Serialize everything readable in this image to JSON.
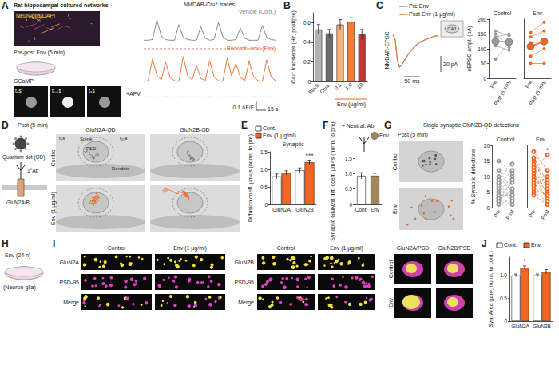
{
  "figure": {
    "panel_labels": [
      "A",
      "B",
      "C",
      "D",
      "E",
      "F",
      "G",
      "H",
      "I",
      "J"
    ],
    "A": {
      "title": "Rat hippocampal cultured networks",
      "stain": "NeuN/glia/DAPI",
      "protocol": "Pre-post Env (5 min)",
      "imaging": "GCaMP",
      "times": [
        "t₀s",
        "t₁.₅s",
        "t₃s"
      ],
      "traces_title": "NMDAR-Ca²⁺ traces"
    },
    "D": {
      "title": "Post (5 min)",
      "columns": [
        "GluN2A-QD",
        "GluN2B-QD"
      ],
      "rows": [
        "Control",
        "Env (1 µg/ml)"
      ],
      "probe": [
        "Quantum dot (QD)",
        "1°Ab",
        "GluN2A/B"
      ],
      "structures": [
        "Spine",
        "PSD",
        "Dendrite"
      ],
      "times": [
        "t₀s",
        "t₂₅s"
      ]
    },
    "G": {
      "title": "Post (5 min)",
      "rows": [
        "Control",
        "Env"
      ]
    },
    "H": {
      "title": "Env (24 h)",
      "subtitle": "(Neuron-glia)"
    },
    "I": {
      "columns": [
        "Control",
        "Env (1 µg/ml)",
        "Control",
        "Env (1 µg/ml)"
      ],
      "rows_left": [
        "GluN2A",
        "PSD-95",
        "Merge"
      ],
      "rows_right": [
        "GluN2B",
        "PSD-95",
        "Merge"
      ],
      "zoom_columns": [
        "GluN2A/PSD",
        "GluN2B/PSD"
      ],
      "zoom_rows": [
        "Control",
        "Env"
      ]
    }
  },
  "chart_data": [
    {
      "type": "line",
      "title": "Vehicle (Cont.)",
      "color": "#7f7f7f",
      "tick_labels": false,
      "xlim": [
        0,
        60
      ],
      "ylim": [
        0,
        0.4
      ],
      "x": [
        0,
        2,
        4,
        6,
        8,
        10,
        12,
        14,
        16,
        18,
        20,
        22,
        24,
        26,
        28,
        30,
        32,
        34,
        36,
        38,
        40,
        42,
        44,
        46,
        48,
        50,
        52,
        54,
        56,
        58,
        60
      ],
      "values": [
        0.02,
        0.02,
        0.03,
        0.32,
        0.08,
        0.03,
        0.02,
        0.02,
        0.25,
        0.06,
        0.03,
        0.02,
        0.02,
        0.22,
        0.05,
        0.02,
        0.03,
        0.28,
        0.07,
        0.02,
        0.02,
        0.03,
        0.2,
        0.05,
        0.02,
        0.02,
        0.02,
        0.24,
        0.06,
        0.03,
        0.02
      ]
    },
    {
      "type": "line",
      "title": "Recomb. env. (Env)",
      "color": "#f26522",
      "tick_labels": false,
      "xlim": [
        0,
        60
      ],
      "ylim": [
        0,
        0.4
      ],
      "x": [
        0,
        2,
        4,
        6,
        8,
        10,
        12,
        14,
        16,
        18,
        20,
        22,
        24,
        26,
        28,
        30,
        32,
        34,
        36,
        38,
        40,
        42,
        44,
        46,
        48,
        50,
        52,
        54,
        56,
        58,
        60
      ],
      "values": [
        0.02,
        0.03,
        0.3,
        0.1,
        0.04,
        0.26,
        0.07,
        0.03,
        0.02,
        0.33,
        0.09,
        0.04,
        0.22,
        0.06,
        0.03,
        0.28,
        0.08,
        0.03,
        0.02,
        0.31,
        0.09,
        0.24,
        0.07,
        0.03,
        0.27,
        0.08,
        0.03,
        0.02,
        0.29,
        0.08,
        0.03
      ]
    },
    {
      "type": "line",
      "title": "+APV",
      "color": "#333333",
      "tick_labels": false,
      "xlim": [
        0,
        60
      ],
      "ylim": [
        0,
        0.4
      ],
      "annotations": [
        "0.1 ΔF/F",
        "15 s"
      ],
      "x": [
        0,
        2,
        4,
        6,
        8,
        10,
        12,
        14,
        16,
        18,
        20,
        22,
        24,
        26,
        28,
        30,
        32,
        34,
        36,
        38,
        40,
        42,
        44,
        46,
        48,
        50,
        52,
        54,
        56,
        58,
        60
      ],
      "values": [
        0.02,
        0.022,
        0.02,
        0.021,
        0.02,
        0.023,
        0.02,
        0.021,
        0.02,
        0.022,
        0.02,
        0.022,
        0.02,
        0.021,
        0.02,
        0.023,
        0.02,
        0.021,
        0.02,
        0.022,
        0.02,
        0.022,
        0.02,
        0.021,
        0.02,
        0.023,
        0.02,
        0.021,
        0.02,
        0.022,
        0.02
      ]
    },
    {
      "type": "bar",
      "ylabel": "Ca²⁺ transients (Hz, post/pre)",
      "categories": [
        "Blank",
        "Cont.",
        "0.1",
        "1.0",
        "10"
      ],
      "values": [
        0.53,
        0.49,
        0.58,
        0.61,
        0.48
      ],
      "errors": [
        0.05,
        0.04,
        0.05,
        0.04,
        0.05
      ],
      "colors": [
        "#b3b3b3",
        "#6d6d6d",
        "#f9b27a",
        "#f47c30",
        "#c8332b"
      ],
      "ylim": [
        0,
        0.7
      ],
      "yticks": [
        0,
        0.2,
        0.4,
        0.6
      ],
      "annotations": [
        "Env (µg/ml)"
      ]
    },
    {
      "type": "line",
      "title": "NMDAR-EPSC",
      "tick_labels": false,
      "xlim": [
        0,
        200
      ],
      "ylim": [
        -40,
        5
      ],
      "annotations": [
        "CA1",
        "50 ms",
        "20 pA"
      ],
      "x": [
        0,
        10,
        20,
        30,
        40,
        50,
        60,
        70,
        80,
        90,
        100,
        110,
        120,
        130,
        140,
        150,
        160,
        170,
        180,
        190,
        200
      ],
      "series": [
        {
          "name": "Pre Env",
          "color": "#8c8c8c",
          "values": [
            0,
            -5,
            -28,
            -36,
            -34,
            -30,
            -26,
            -22,
            -19,
            -16,
            -13,
            -11,
            -9,
            -8,
            -6,
            -5,
            -4,
            -3,
            -2,
            -2,
            -1
          ]
        },
        {
          "name": "Post Env (1 µg/ml)",
          "color": "#f26522",
          "values": [
            0,
            -5,
            -30,
            -37,
            -34,
            -29,
            -25,
            -21,
            -18,
            -15,
            -12,
            -10,
            -8,
            -7,
            -6,
            -5,
            -4,
            -3,
            -2,
            -1,
            -1
          ]
        }
      ]
    },
    {
      "type": "paired",
      "ylabel": "eEPSC ampl. (pA)",
      "categories": [
        "Pre",
        "Post (5 min)"
      ],
      "ylim": [
        0,
        200
      ],
      "yticks": [
        0,
        50,
        100,
        150,
        200
      ],
      "series": [
        {
          "name": "Control",
          "color": "#9a9a9a",
          "marker": "filled",
          "line_style": "solid",
          "values": [
            [
              160,
              145
            ],
            [
              150,
              105
            ],
            [
              140,
              150
            ],
            [
              110,
              95
            ],
            [
              65,
              120
            ]
          ],
          "mean": [
            125,
            123
          ]
        },
        {
          "name": "Env",
          "color": "#f26522",
          "marker": "filled",
          "line_style": "solid",
          "values": [
            [
              155,
              190
            ],
            [
              140,
              160
            ],
            [
              120,
              125
            ],
            [
              75,
              100
            ],
            [
              50,
              50
            ]
          ],
          "mean": [
            108,
            125
          ]
        }
      ]
    },
    {
      "type": "bar",
      "title": "Synaptic",
      "ylabel": "Diffusion coeff. µm²/s (norm. to pre)",
      "categories": [
        "GluN2A",
        "GluN2B"
      ],
      "legend": "top",
      "series": [
        {
          "name": "Cont.",
          "color": "#ffffff",
          "values": [
            0.8,
            0.97
          ],
          "errors": [
            0.07,
            0.07
          ]
        },
        {
          "name": "Env (1 µg/ml)",
          "color": "#f26522",
          "values": [
            0.9,
            1.2
          ],
          "errors": [
            0.06,
            0.06
          ]
        }
      ],
      "ylim": [
        0,
        1.5
      ],
      "yticks": [
        0,
        0.5,
        {
          "value": 1,
          "label": "1.0"
        },
        1.5
      ],
      "annotations": [
        {
          "text": "***",
          "category": "GluN2B",
          "series": "Env (1 µg/ml)"
        }
      ]
    },
    {
      "type": "bar",
      "title": "+ Neutral. Ab",
      "ylabel": "Synaptic GluN2B diff. coeff. µm²/s (norm. to pre)",
      "categories": [
        "Cont.",
        "Env"
      ],
      "values": [
        0.93,
        0.93
      ],
      "errors": [
        0.1,
        0.08
      ],
      "colors": [
        "#ffffff",
        "#a3875a"
      ],
      "ylim": [
        0,
        1.5
      ],
      "yticks": [
        0,
        0.5,
        {
          "value": 1,
          "label": "1.0"
        },
        1.5
      ],
      "annotations": [
        "Env"
      ]
    },
    {
      "type": "paired",
      "title": "Single synaptic GluN2B-QD detections",
      "ylabel": "% Synaptic detections",
      "categories": [
        "Pre",
        "Post"
      ],
      "ylim": [
        0,
        20
      ],
      "yticks": [
        0,
        5,
        10,
        15,
        20
      ],
      "series": [
        {
          "name": "Control",
          "color": "#9a9a9a",
          "marker": "open",
          "line_style": "dashed",
          "values": [
            [
              3,
              8
            ],
            [
              6,
              4
            ],
            [
              2,
              9
            ],
            [
              10,
              5
            ],
            [
              1,
              3
            ],
            [
              7,
              12
            ],
            [
              4,
              4
            ],
            [
              12,
              6
            ],
            [
              5,
              10
            ],
            [
              8,
              2
            ],
            [
              2,
              6
            ],
            [
              15,
              11
            ],
            [
              9,
              14
            ],
            [
              3,
              1
            ]
          ]
        },
        {
          "name": "Env",
          "color": "#f26522",
          "marker": "open",
          "line_style": "dashed",
          "values": [
            [
              18,
              12
            ],
            [
              15,
              6
            ],
            [
              12,
              17
            ],
            [
              10,
              5
            ],
            [
              8,
              3
            ],
            [
              14,
              9
            ],
            [
              6,
              4
            ],
            [
              11,
              2
            ],
            [
              9,
              7
            ],
            [
              5,
              2
            ],
            [
              7,
              10
            ],
            [
              13,
              4
            ],
            [
              4,
              1
            ],
            [
              16,
              8
            ]
          ]
        }
      ],
      "annotations": [
        {
          "text": "*",
          "category": "Post",
          "series": "Env"
        }
      ]
    },
    {
      "type": "bar",
      "ylabel": "Syn. Area (µm², norm. to cont.)",
      "categories": [
        "GluN2A",
        "GluN2B"
      ],
      "legend": "top",
      "series": [
        {
          "name": "Cont.",
          "color": "#ffffff",
          "values": [
            1.0,
            1.0
          ],
          "errors": [
            0.03,
            0.03
          ]
        },
        {
          "name": "Env",
          "color": "#f26522",
          "values": [
            1.17,
            1.08
          ],
          "errors": [
            0.04,
            0.05
          ]
        }
      ],
      "ylim": [
        0,
        1.4
      ],
      "yticks": [
        0,
        0.5,
        {
          "value": 1,
          "label": "1.0"
        }
      ],
      "annotations": [
        {
          "text": "*",
          "category": "GluN2A",
          "series": "Env"
        }
      ]
    }
  ]
}
